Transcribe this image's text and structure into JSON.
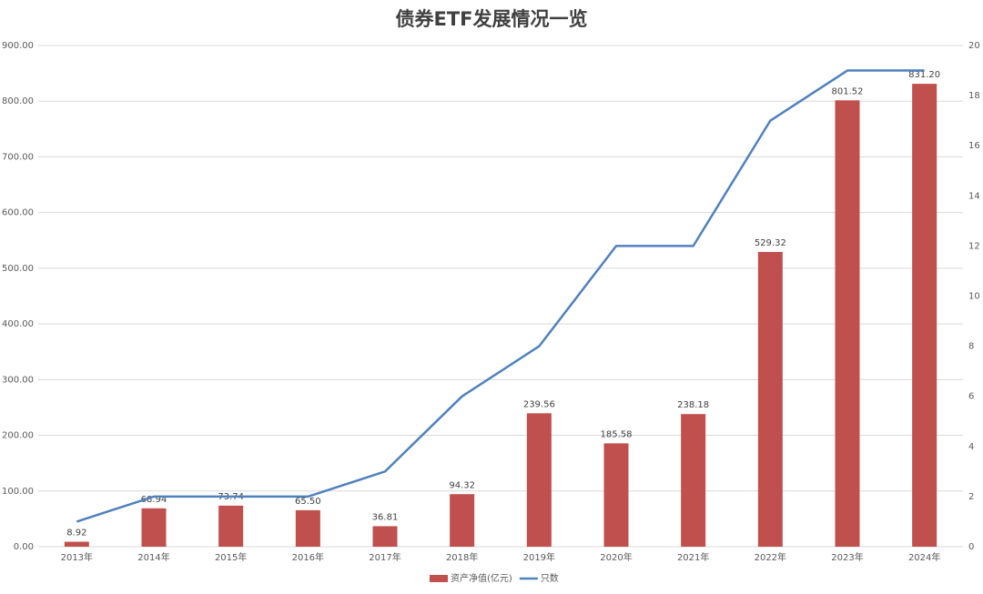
{
  "chart_data": {
    "type": "combo",
    "title": "债券ETF发展情况一览",
    "categories": [
      "2013年",
      "2014年",
      "2015年",
      "2016年",
      "2017年",
      "2018年",
      "2019年",
      "2020年",
      "2021年",
      "2022年",
      "2023年",
      "2024年"
    ],
    "series": [
      {
        "name": "资产净值(亿元)",
        "type": "bar",
        "color": "#c0504d",
        "values": [
          8.92,
          68.94,
          73.74,
          65.5,
          36.81,
          94.32,
          239.56,
          185.58,
          238.18,
          529.32,
          801.52,
          831.2
        ],
        "value_labels": [
          "8.92",
          "68.94",
          "73.74",
          "65.50",
          "36.81",
          "94.32",
          "239.56",
          "185.58",
          "238.18",
          "529.32",
          "801.52",
          "831.20"
        ]
      },
      {
        "name": "只数",
        "type": "line",
        "axis": "y2",
        "color": "#4f81bd",
        "values": [
          1,
          2,
          2,
          2,
          3,
          6,
          8,
          12,
          12,
          17,
          19,
          19
        ]
      }
    ],
    "ylim": [
      0,
      900
    ],
    "yticks": [
      {
        "value": 0,
        "label": "0.00"
      },
      {
        "value": 100,
        "label": "100.00"
      },
      {
        "value": 200,
        "label": "200.00"
      },
      {
        "value": 300,
        "label": "300.00"
      },
      {
        "value": 400,
        "label": "400.00"
      },
      {
        "value": 500,
        "label": "500.00"
      },
      {
        "value": 600,
        "label": "600.00"
      },
      {
        "value": 700,
        "label": "700.00"
      },
      {
        "value": 800,
        "label": "800.00"
      },
      {
        "value": 900,
        "label": "900.00"
      }
    ],
    "y2lim": [
      0,
      20
    ],
    "y2ticks": [
      0,
      2,
      4,
      6,
      8,
      10,
      12,
      14,
      16,
      18,
      20
    ],
    "grid": true,
    "legend": "bottom"
  }
}
